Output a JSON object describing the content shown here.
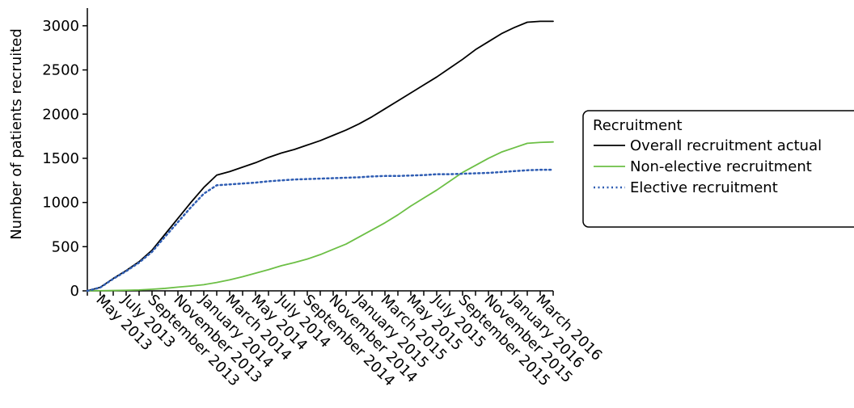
{
  "chart_data": {
    "type": "line",
    "title": "",
    "xlabel": "",
    "ylabel": "Number of patients recruited",
    "ylim": [
      0,
      3200
    ],
    "y_ticks": [
      0,
      500,
      1000,
      1500,
      2000,
      2500,
      3000
    ],
    "categories": [
      "May 2013",
      "July 2013",
      "September 2013",
      "November 2013",
      "January 2014",
      "March 2014",
      "May 2014",
      "July 2014",
      "September 2014",
      "November 2014",
      "January 2015",
      "March 2015",
      "May 2015",
      "July 2015",
      "September 2015",
      "November 2015",
      "January 2016",
      "March 2016"
    ],
    "x": [
      "April 2013",
      "May 2013",
      "June 2013",
      "July 2013",
      "August 2013",
      "September 2013",
      "October 2013",
      "November 2013",
      "December 2013",
      "January 2014",
      "February 2014",
      "March 2014",
      "April 2014",
      "May 2014",
      "June 2014",
      "July 2014",
      "August 2014",
      "September 2014",
      "October 2014",
      "November 2014",
      "December 2014",
      "January 2015",
      "February 2015",
      "March 2015",
      "April 2015",
      "May 2015",
      "June 2015",
      "July 2015",
      "August 2015",
      "September 2015",
      "October 2015",
      "November 2015",
      "December 2015",
      "January 2016",
      "February 2016",
      "March 2016",
      "April 2016"
    ],
    "series": [
      {
        "name": "Overall recruitment actual",
        "color": "#000000",
        "style": "solid",
        "values": [
          0,
          40,
          140,
          230,
          330,
          460,
          640,
          820,
          1000,
          1170,
          1310,
          1350,
          1400,
          1450,
          1510,
          1560,
          1600,
          1650,
          1700,
          1760,
          1820,
          1890,
          1970,
          2060,
          2150,
          2240,
          2330,
          2420,
          2520,
          2620,
          2730,
          2820,
          2910,
          2980,
          3040,
          3050,
          3050
        ]
      },
      {
        "name": "Non-elective recruitment",
        "color": "#6cbf45",
        "style": "solid",
        "values": [
          0,
          2,
          4,
          7,
          10,
          18,
          28,
          42,
          55,
          70,
          95,
          125,
          160,
          200,
          240,
          285,
          320,
          360,
          410,
          470,
          530,
          610,
          690,
          770,
          860,
          960,
          1050,
          1140,
          1240,
          1340,
          1420,
          1500,
          1570,
          1620,
          1670,
          1680,
          1685
        ]
      },
      {
        "name": "Elective recruitment",
        "color": "#2f5db3",
        "style": "dotted",
        "values": [
          0,
          38,
          136,
          223,
          320,
          442,
          612,
          778,
          945,
          1100,
          1195,
          1205,
          1215,
          1225,
          1240,
          1250,
          1260,
          1265,
          1270,
          1275,
          1280,
          1285,
          1295,
          1300,
          1300,
          1305,
          1310,
          1320,
          1320,
          1325,
          1330,
          1335,
          1345,
          1355,
          1365,
          1370,
          1370
        ]
      }
    ],
    "legend": {
      "title": "Recruitment",
      "placement": "right"
    },
    "grid": false
  }
}
